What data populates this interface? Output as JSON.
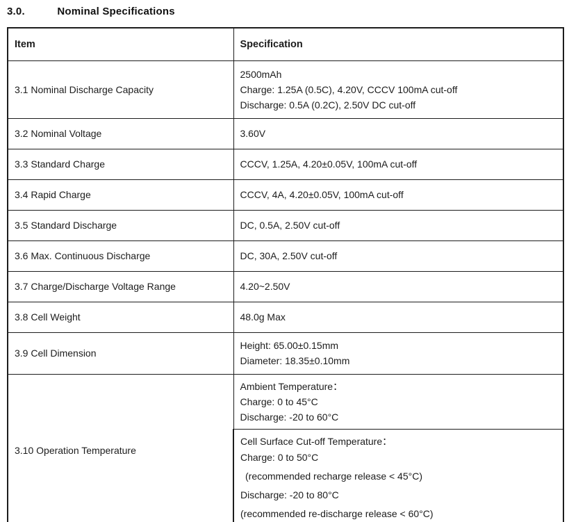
{
  "page": {
    "title_number": "3.0.",
    "title_text": "Nominal Specifications"
  },
  "table": {
    "headers": {
      "item": "Item",
      "specification": "Specification"
    },
    "rows": [
      {
        "item": "3.1 Nominal Discharge Capacity",
        "spec_lines": [
          "2500mAh",
          "Charge: 1.25A (0.5C), 4.20V, CCCV 100mA cut-off",
          "Discharge: 0.5A (0.2C), 2.50V DC cut-off"
        ]
      },
      {
        "item": "3.2 Nominal Voltage",
        "spec_lines": [
          "3.60V"
        ]
      },
      {
        "item": "3.3 Standard Charge",
        "spec_lines": [
          "CCCV, 1.25A, 4.20±0.05V, 100mA cut-off"
        ]
      },
      {
        "item": "3.4 Rapid Charge",
        "spec_lines": [
          "CCCV, 4A, 4.20±0.05V, 100mA cut-off"
        ]
      },
      {
        "item": "3.5 Standard Discharge",
        "spec_lines": [
          "DC, 0.5A, 2.50V cut-off"
        ]
      },
      {
        "item": "3.6 Max. Continuous Discharge",
        "spec_lines": [
          "DC, 30A, 2.50V cut-off"
        ]
      },
      {
        "item": "3.7 Charge/Discharge Voltage Range",
        "spec_lines": [
          "4.20~2.50V"
        ]
      },
      {
        "item": "3.8 Cell Weight",
        "spec_lines": [
          "48.0g Max"
        ]
      },
      {
        "item": "3.9 Cell Dimension",
        "spec_lines": [
          "Height: 65.00±0.15mm",
          "Diameter: 18.35±0.10mm"
        ]
      },
      {
        "item": "3.10 Operation Temperature",
        "blocks": [
          {
            "lines": [
              "Ambient Temperature：",
              "Charge: 0 to 45°C",
              "Discharge: -20 to 60°C"
            ]
          },
          {
            "lines": [
              "Cell Surface Cut-off Temperature：",
              "Charge: 0 to 50°C",
              "(recommended recharge release < 45°C)",
              "Discharge: -20 to 80°C",
              "(recommended re-discharge release < 60°C)"
            ]
          }
        ]
      }
    ]
  }
}
